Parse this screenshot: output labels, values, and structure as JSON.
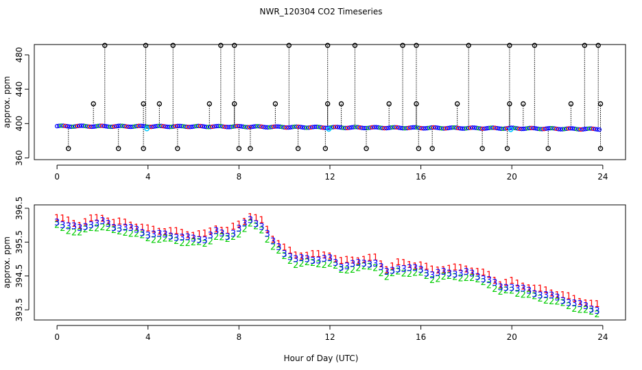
{
  "chart_data": {
    "type": "scatter",
    "title": "NWR_120304  CO2 Timeseries",
    "xlabel": "Hour of Day (UTC)",
    "colors": {
      "series_1": "#ff0000",
      "series_2": "#00cc00",
      "series_3": "#0000ff",
      "outlier": "#000000",
      "highlight": "#00ccff",
      "dropline": "#000000",
      "axis": "#000000"
    },
    "panels": [
      {
        "name": "top-panel",
        "ylabel": "approx. ppm",
        "xlim": [
          -1,
          25
        ],
        "ylim": [
          358,
          492
        ],
        "xticks": [
          0,
          4,
          8,
          12,
          16,
          20,
          24
        ],
        "xtick_labels": [
          "0",
          "4",
          "8",
          "12",
          "16",
          "20",
          "24"
        ],
        "yticks": [
          360,
          400,
          440,
          480
        ],
        "ytick_labels": [
          "360",
          "400",
          "440",
          "480"
        ],
        "baseline_anchors": [
          [
            0,
            397
          ],
          [
            8,
            396.5
          ],
          [
            12,
            395.5
          ],
          [
            16,
            395
          ],
          [
            20,
            394.5
          ],
          [
            24,
            393.5
          ]
        ],
        "baseline_marker": "o",
        "high_outliers_hours": [
          2.1,
          3.9,
          5.1,
          7.2,
          7.8,
          10.2,
          11.9,
          13.1,
          15.2,
          15.8,
          18.1,
          19.9,
          21.0,
          23.2,
          23.8
        ],
        "high_outlier_value": 491,
        "mid_outliers_hours": [
          1.6,
          3.8,
          4.5,
          6.7,
          7.8,
          9.6,
          11.9,
          12.5,
          14.6,
          15.8,
          17.6,
          19.9,
          20.5,
          22.6,
          23.9
        ],
        "mid_outlier_value": 423,
        "low_outliers_hours": [
          0.5,
          2.7,
          3.8,
          5.3,
          8.0,
          8.5,
          10.6,
          11.8,
          13.6,
          15.9,
          16.5,
          18.7,
          19.8,
          21.6,
          23.9
        ],
        "low_outlier_value": 371,
        "highlight_points": [
          [
            3.95,
            394
          ],
          [
            11.95,
            393.5
          ],
          [
            19.95,
            393
          ]
        ]
      },
      {
        "name": "bottom-panel",
        "ylabel": "approx. ppm",
        "xlim": [
          -1,
          25
        ],
        "ylim": [
          393.2,
          396.6
        ],
        "xticks": [
          0,
          4,
          8,
          12,
          16,
          20,
          24
        ],
        "xtick_labels": [
          "0",
          "4",
          "8",
          "12",
          "16",
          "20",
          "24"
        ],
        "yticks": [
          393.5,
          394.5,
          395.5,
          396.5
        ],
        "ytick_labels": [
          "393.5",
          "394.5",
          "395.5",
          "396.5"
        ],
        "series": [
          {
            "name": "1",
            "label": "1",
            "offset": 0.13
          },
          {
            "name": "2",
            "label": "2",
            "offset": -0.12
          },
          {
            "name": "3",
            "label": "3",
            "offset": 0.0
          }
        ],
        "trend": [
          [
            0,
            396.1
          ],
          [
            0.5,
            396.0
          ],
          [
            1,
            395.9
          ],
          [
            1.5,
            396.05
          ],
          [
            2,
            396.1
          ],
          [
            2.5,
            395.95
          ],
          [
            3,
            395.95
          ],
          [
            3.5,
            395.85
          ],
          [
            4,
            395.75
          ],
          [
            5,
            395.7
          ],
          [
            6,
            395.6
          ],
          [
            6.5,
            395.6
          ],
          [
            7,
            395.8
          ],
          [
            7.5,
            395.7
          ],
          [
            8,
            395.9
          ],
          [
            8.5,
            396.15
          ],
          [
            9,
            396.0
          ],
          [
            9.5,
            395.5
          ],
          [
            10,
            395.2
          ],
          [
            10.5,
            395.0
          ],
          [
            11,
            395.0
          ],
          [
            12,
            395.0
          ],
          [
            12.5,
            394.8
          ],
          [
            13,
            394.85
          ],
          [
            14,
            394.9
          ],
          [
            14.5,
            394.6
          ],
          [
            15,
            394.75
          ],
          [
            16,
            394.7
          ],
          [
            16.5,
            394.55
          ],
          [
            17,
            394.6
          ],
          [
            18,
            394.6
          ],
          [
            19,
            394.4
          ],
          [
            19.5,
            394.15
          ],
          [
            20,
            394.2
          ],
          [
            21,
            394.0
          ],
          [
            21.5,
            393.95
          ],
          [
            22,
            393.85
          ],
          [
            23,
            393.65
          ],
          [
            23.5,
            393.55
          ],
          [
            23.9,
            393.5
          ]
        ],
        "sample_interval_hours": 0.25
      }
    ]
  }
}
